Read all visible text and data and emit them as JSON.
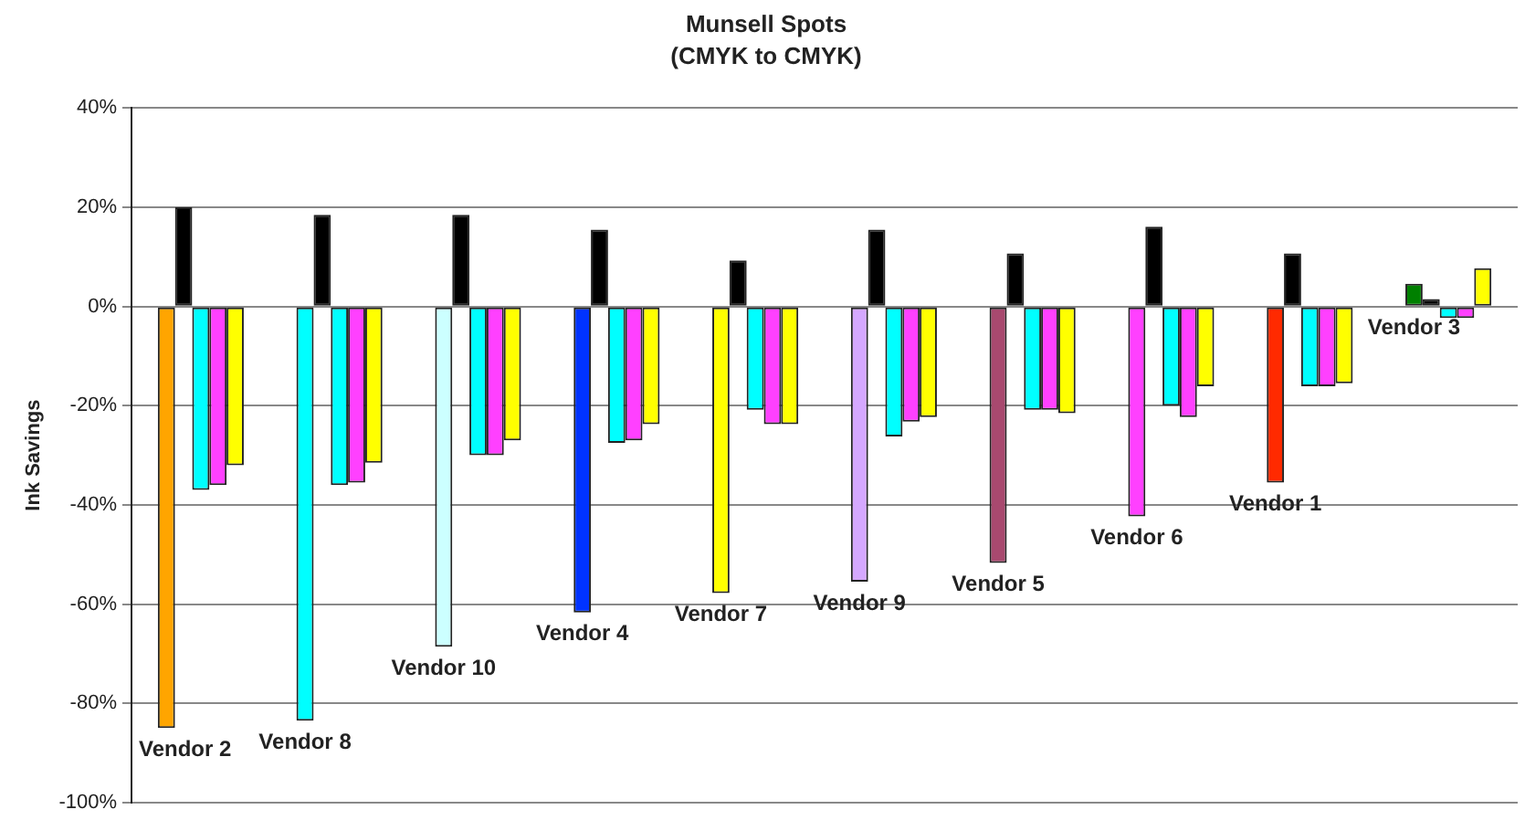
{
  "chart_data": {
    "type": "bar",
    "title": "Munsell Spots",
    "subtitle": "(CMYK to CMYK)",
    "ylabel": "Ink Savings",
    "categories": [
      "Vendor 2",
      "Vendor 8",
      "Vendor 10",
      "Vendor 4",
      "Vendor 7",
      "Vendor 9",
      "Vendor 5",
      "Vendor 6",
      "Vendor 1",
      "Vendor 3"
    ],
    "series": [
      {
        "colors": [
          "#ffa500",
          "#00ffff",
          "#ccffff",
          "#0033ff",
          "#ffff00",
          "#d5a8ff",
          "#a8496f",
          "#ff40ff",
          "#ff2a00",
          "#008000"
        ],
        "values": [
          -85,
          -83.5,
          -68.6,
          -61.7,
          -57.8,
          -55.5,
          -51.7,
          -42.3,
          -35.5,
          4.6
        ]
      },
      {
        "color": "#000000",
        "values": [
          20,
          18.5,
          18.5,
          15.5,
          9.3,
          15.5,
          10.7,
          16.1,
          10.7,
          1.5
        ]
      },
      {
        "color": "#00ffff",
        "values": [
          -37,
          -36,
          -30,
          -27.5,
          -20.8,
          -26.2,
          -20.8,
          -20,
          -16.1,
          -2.3
        ]
      },
      {
        "color": "#ff40ff",
        "values": [
          -36,
          -35.5,
          -30,
          -27,
          -23.7,
          -23.2,
          -20.8,
          -22.3,
          -16.1,
          -2.3
        ]
      },
      {
        "color": "#ffff00",
        "values": [
          -32,
          -31.5,
          -27,
          -23.7,
          -23.7,
          -22.3,
          -21.5,
          -16.1,
          -15.5,
          7.7
        ]
      }
    ],
    "ylim": [
      -100,
      40
    ],
    "yticks": [
      {
        "value": -100,
        "label": "-100%"
      },
      {
        "value": -80,
        "label": "-80%"
      },
      {
        "value": -60,
        "label": "-60%"
      },
      {
        "value": -40,
        "label": "-40%"
      },
      {
        "value": -20,
        "label": "-20%"
      },
      {
        "value": 0,
        "label": "0%"
      },
      {
        "value": 20,
        "label": "20%"
      },
      {
        "value": 40,
        "label": "40%"
      }
    ],
    "grid": "y",
    "legend": false,
    "tick_labels": "y"
  }
}
